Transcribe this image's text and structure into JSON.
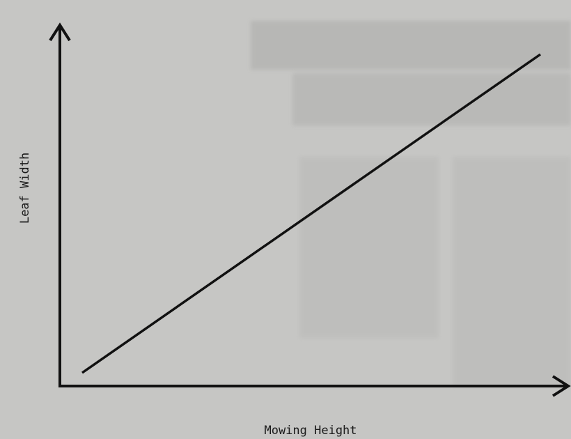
{
  "chart_data": {
    "type": "line",
    "x_label": "Mowing Height",
    "y_label": "Leaf Width"
  }
}
